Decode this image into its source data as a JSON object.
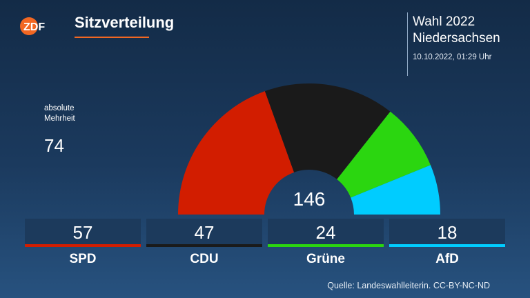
{
  "header": {
    "logo_text": "ZDF",
    "title": "Sitzverteilung",
    "election_line1": "Wahl 2022",
    "election_line2": "Niedersachsen",
    "timestamp": "10.10.2022, 01:29 Uhr"
  },
  "majority": {
    "label": "absolute Mehrheit",
    "value": "74"
  },
  "total_seats": "146",
  "footer": {
    "source": "Quelle: Landeswahlleiterin. CC-BY-NC-ND"
  },
  "colors": {
    "accent": "#f26722",
    "SPD": "#d21d00",
    "CDU": "#1a1a1a",
    "Grüne": "#2bd610",
    "AfD": "#00ccff"
  },
  "chart_data": {
    "type": "pie",
    "variant": "semicircle-parliament",
    "total": 146,
    "categories": [
      "SPD",
      "CDU",
      "Grüne",
      "AfD"
    ],
    "values": [
      57,
      47,
      24,
      18
    ],
    "colors": [
      "#d21d00",
      "#1a1a1a",
      "#2bd610",
      "#00ccff"
    ],
    "labels": [
      "57",
      "47",
      "24",
      "18"
    ]
  }
}
